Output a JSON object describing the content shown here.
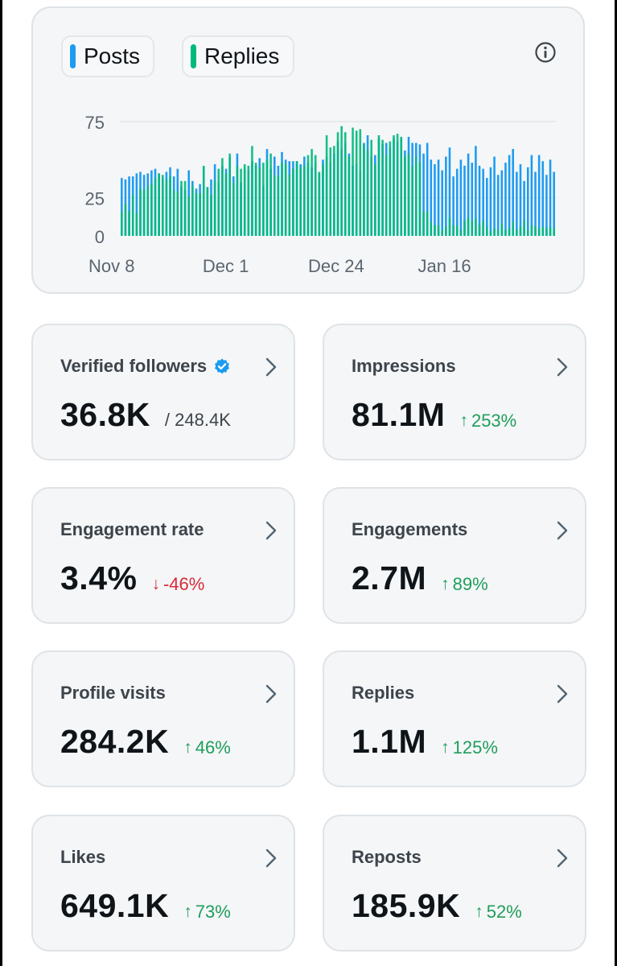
{
  "chart": {
    "legend": {
      "posts_label": "Posts",
      "replies_label": "Replies",
      "posts_color": "#1d9bf0",
      "replies_color": "#00ba7c"
    },
    "info_icon": "info-icon"
  },
  "chart_data": {
    "type": "bar",
    "title": "",
    "xlabel": "",
    "ylabel": "",
    "ylim": [
      0,
      75
    ],
    "y_ticks": [
      "0",
      "25",
      "75"
    ],
    "x_ticks": [
      "Nov 8",
      "Dec 1",
      "Dec 24",
      "Jan 16"
    ],
    "grid": true,
    "legend_position": "top-left",
    "series": [
      {
        "name": "Posts",
        "color": "#1d9bf0",
        "values": [
          38,
          37,
          39,
          39,
          41,
          42,
          40,
          41,
          43,
          44,
          41,
          38,
          42,
          45,
          39,
          44,
          32,
          30,
          43,
          36,
          31,
          34,
          45,
          32,
          37,
          47,
          35,
          46,
          44,
          52,
          39,
          54,
          35,
          44,
          43,
          49,
          46,
          51,
          33,
          57,
          44,
          52,
          46,
          55,
          50,
          49,
          49,
          49,
          47,
          52,
          48,
          45,
          48,
          41,
          50,
          52,
          48,
          54,
          62,
          57,
          61,
          54,
          46,
          47,
          43,
          61,
          66,
          52,
          53,
          64,
          60,
          61,
          58,
          64,
          62,
          64,
          56,
          65,
          61,
          61,
          60,
          54,
          61,
          50,
          47,
          50,
          43,
          52,
          58,
          39,
          44,
          50,
          46,
          54,
          48,
          59,
          46,
          44,
          38,
          45,
          52,
          40,
          43,
          48,
          53,
          57,
          42,
          47,
          36,
          45,
          53,
          42,
          53,
          49,
          40,
          50,
          42
        ]
      },
      {
        "name": "Replies",
        "color": "#00ba7c",
        "values": [
          16,
          21,
          16,
          27,
          15,
          31,
          30,
          33,
          34,
          38,
          41,
          40,
          37,
          39,
          30,
          29,
          36,
          36,
          26,
          33,
          28,
          28,
          46,
          32,
          27,
          36,
          44,
          51,
          41,
          54,
          35,
          46,
          44,
          47,
          46,
          59,
          48,
          45,
          48,
          50,
          54,
          40,
          39,
          48,
          47,
          40,
          44,
          49,
          45,
          46,
          53,
          57,
          53,
          42,
          47,
          66,
          58,
          59,
          68,
          72,
          68,
          52,
          71,
          69,
          70,
          60,
          56,
          63,
          47,
          66,
          63,
          53,
          62,
          66,
          67,
          65,
          52,
          54,
          46,
          52,
          48,
          16,
          16,
          9,
          7,
          7,
          4,
          6,
          12,
          7,
          7,
          4,
          10,
          12,
          10,
          11,
          7,
          10,
          6,
          3,
          5,
          4,
          8,
          4,
          5,
          9,
          4,
          6,
          10,
          4,
          7,
          6,
          5,
          6,
          5,
          6,
          5
        ]
      }
    ]
  },
  "stats": [
    {
      "label": "Verified followers",
      "value": "36.8K",
      "sub": "/ 248.4K",
      "badge_icon": "verified-badge-icon"
    },
    {
      "label": "Impressions",
      "value": "81.1M",
      "change": "253%",
      "direction": "up"
    },
    {
      "label": "Engagement rate",
      "value": "3.4%",
      "change": "-46%",
      "direction": "down"
    },
    {
      "label": "Engagements",
      "value": "2.7M",
      "change": "89%",
      "direction": "up"
    },
    {
      "label": "Profile visits",
      "value": "284.2K",
      "change": "46%",
      "direction": "up"
    },
    {
      "label": "Replies",
      "value": "1.1M",
      "change": "125%",
      "direction": "up"
    },
    {
      "label": "Likes",
      "value": "649.1K",
      "change": "73%",
      "direction": "up"
    },
    {
      "label": "Reposts",
      "value": "185.9K",
      "change": "52%",
      "direction": "up"
    }
  ],
  "arrows": {
    "up": "↑",
    "down": "↓"
  }
}
